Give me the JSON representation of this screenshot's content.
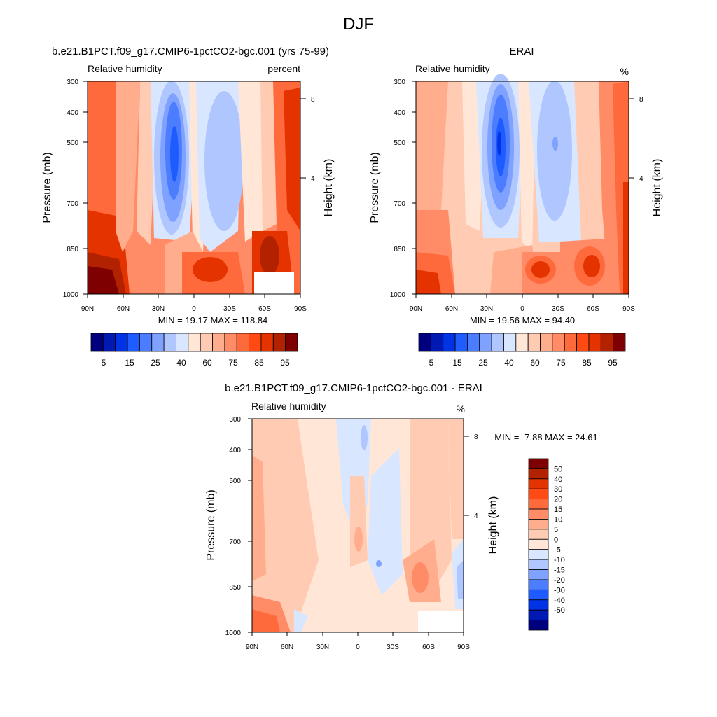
{
  "page": {
    "title": "DJF"
  },
  "colors": {
    "abs_levels": [
      "#00007f",
      "#0019b2",
      "#0033e5",
      "#1f5cff",
      "#4d7dff",
      "#7fa1ff",
      "#b0c6ff",
      "#d9e6ff",
      "#ffe6d6",
      "#ffccb3",
      "#ffad8c",
      "#ff8c66",
      "#ff6a3d",
      "#ff4a14",
      "#e53300",
      "#b22200",
      "#7f0000"
    ],
    "diff_levels": [
      "#00007f",
      "#0019b2",
      "#0033e5",
      "#1f5cff",
      "#4d7dff",
      "#7fa1ff",
      "#b0c6ff",
      "#d9e6ff",
      "#ffe6d6",
      "#ffccb3",
      "#ffad8c",
      "#ff8c66",
      "#ff6a3d",
      "#ff4a14",
      "#e53300",
      "#b22200",
      "#7f0000"
    ]
  },
  "chart_data": [
    {
      "type": "heatmap",
      "title": "b.e21.B1PCT.f09_g17.CMIP6-1pctCO2-bgc.001 (yrs 75-99)",
      "variable": "Relative humidity",
      "units": "percent",
      "ylabel": "Pressure (mb)",
      "ylabel_right": "Height (km)",
      "xticks": [
        "90N",
        "60N",
        "30N",
        "0",
        "30S",
        "60S",
        "90S"
      ],
      "yticks": [
        "300",
        "400",
        "500",
        "700",
        "850",
        "1000"
      ],
      "yticks_right": [
        "8",
        "4"
      ],
      "ylim": [
        1000,
        300
      ],
      "xlim": [
        90,
        -90
      ],
      "stats": "MIN =  19.17  MAX = 118.84",
      "colorbar_labels": [
        "5",
        "15",
        "25",
        "40",
        "60",
        "75",
        "85",
        "95"
      ]
    },
    {
      "type": "heatmap",
      "title": "ERAI",
      "variable": "Relative humidity",
      "units": "%",
      "ylabel": "Pressure (mb)",
      "ylabel_right": "Height (km)",
      "xticks": [
        "90N",
        "60N",
        "30N",
        "0",
        "30S",
        "60S",
        "90S"
      ],
      "yticks": [
        "300",
        "400",
        "500",
        "700",
        "850",
        "1000"
      ],
      "yticks_right": [
        "8",
        "4"
      ],
      "ylim": [
        1000,
        300
      ],
      "xlim": [
        90,
        -90
      ],
      "stats": "MIN =  19.56  MAX =  94.40",
      "colorbar_labels": [
        "5",
        "15",
        "25",
        "40",
        "60",
        "75",
        "85",
        "95"
      ]
    },
    {
      "type": "heatmap",
      "title": "b.e21.B1PCT.f09_g17.CMIP6-1pctCO2-bgc.001 - ERAI",
      "variable": "Relative humidity",
      "units": "%",
      "ylabel": "Pressure (mb)",
      "ylabel_right": "Height (km)",
      "xticks": [
        "90N",
        "60N",
        "30N",
        "0",
        "30S",
        "60S",
        "90S"
      ],
      "yticks": [
        "300",
        "400",
        "500",
        "700",
        "850",
        "1000"
      ],
      "yticks_right": [
        "8",
        "4"
      ],
      "ylim": [
        1000,
        300
      ],
      "xlim": [
        90,
        -90
      ],
      "stats": "MIN =  -7.88  MAX =  24.61",
      "colorbar_labels": [
        "50",
        "40",
        "30",
        "20",
        "15",
        "10",
        "5",
        "0",
        "-5",
        "-10",
        "-15",
        "-20",
        "-30",
        "-40",
        "-50"
      ]
    }
  ]
}
